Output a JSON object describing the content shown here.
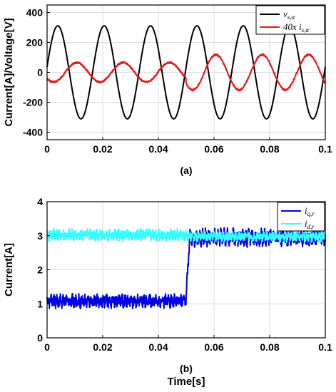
{
  "chart_data": [
    {
      "type": "line",
      "caption": "(a)",
      "xlabel": "",
      "ylabel": "Current[A]/Voltage[V]",
      "xlim": [
        0,
        0.1
      ],
      "ylim": [
        -450,
        450
      ],
      "xticks": [
        0,
        0.02,
        0.04,
        0.06,
        0.08,
        0.1
      ],
      "xtick_labels": [
        "0",
        "0.02",
        "0.04",
        "0.06",
        "0.08",
        "0.1"
      ],
      "yticks": [
        -400,
        -200,
        0,
        200,
        400
      ],
      "ytick_labels": [
        "-400",
        "-200",
        "0",
        "200",
        "400"
      ],
      "grid": true,
      "legend_position": "top-right",
      "series": [
        {
          "name": "v_{s,α}",
          "label_main": "v",
          "label_sub": "s,α",
          "color": "#000000",
          "kind": "sine",
          "amplitude": 311,
          "frequency_hz": 60,
          "phase_rad": 0.12,
          "noise": 0
        },
        {
          "name": "40x i_{s,α}",
          "label_main": "40x i",
          "label_sub": "s,α",
          "color": "#e41a1c",
          "kind": "sine_step",
          "amplitude_before": 65,
          "amplitude_after": 118,
          "step_time": 0.05,
          "frequency_hz": 60,
          "phase_rad": -2.45,
          "noise": 9
        }
      ]
    },
    {
      "type": "line",
      "caption": "(b)",
      "xlabel": "Time[s]",
      "ylabel": "Current[A]",
      "xlim": [
        0,
        0.1
      ],
      "ylim": [
        0,
        4
      ],
      "xticks": [
        0,
        0.02,
        0.04,
        0.06,
        0.08,
        0.1
      ],
      "xtick_labels": [
        "0",
        "0.02",
        "0.04",
        "0.06",
        "0.08",
        "0.1"
      ],
      "yticks": [
        0,
        1,
        2,
        3,
        4
      ],
      "ytick_labels": [
        "0",
        "1",
        "2",
        "3",
        "4"
      ],
      "grid": true,
      "legend_position": "top-right",
      "series": [
        {
          "name": "i_{q,r}",
          "label_main": "i",
          "label_sub": "q,r",
          "color": "#0000e6",
          "kind": "step",
          "level_before": 1.08,
          "level_after": 2.95,
          "step_time": 0.05,
          "rise_time": 0.0012,
          "noise_before": 0.2,
          "noise_after": 0.26
        },
        {
          "name": "i_{d,r}",
          "label_main": "i",
          "label_sub": "d,r",
          "color": "#33ffff",
          "kind": "step",
          "level_before": 3.02,
          "level_after": 2.97,
          "step_time": 0.05,
          "rise_time": 0.001,
          "noise_before": 0.17,
          "noise_after": 0.14
        }
      ]
    }
  ]
}
